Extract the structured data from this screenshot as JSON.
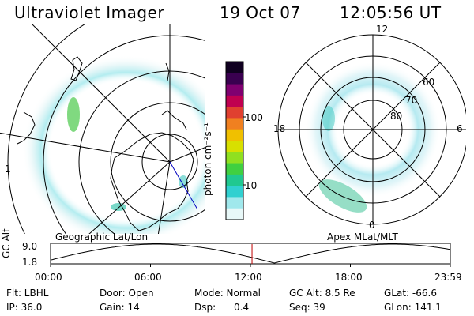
{
  "header": {
    "instrument": "Ultraviolet Imager",
    "date": "19 Oct 07",
    "time": "12:05:56 UT"
  },
  "panels": {
    "geo_label": "Geographic Lat/Lon",
    "apex_label": "Apex MLat/MLT",
    "geo_edge_label": "1"
  },
  "polar": {
    "mlt_top": "12",
    "mlt_left": "18",
    "mlt_right": "6",
    "mlt_bottom": "0",
    "lat_labels": [
      "60",
      "70",
      "80"
    ]
  },
  "colorbar": {
    "unit_label": "photon cm⁻²s⁻¹",
    "ticks": [
      "100",
      "10"
    ],
    "colors": [
      "#100020",
      "#3a0050",
      "#800070",
      "#c00050",
      "#e04030",
      "#f08020",
      "#f0c000",
      "#d8e000",
      "#90e020",
      "#40d040",
      "#20c890",
      "#30d0d0",
      "#a0e8ec",
      "#e8f8f8"
    ]
  },
  "altitude": {
    "axis_label": "GC Alt",
    "ymax": "9.0",
    "ymin": "1.8",
    "xticks": [
      "00:00",
      "06:00",
      "12:00",
      "18:00",
      "23:59"
    ],
    "current_time_fraction": 0.504
  },
  "info": {
    "row1": {
      "filter": "Flt: LBHL",
      "door": "Door: Open",
      "mode": "Mode: Normal",
      "gc_alt": "GC Alt: 8.5 Re",
      "glat": "GLat: -66.6"
    },
    "row2": {
      "ip": "IP: 36.0",
      "gain": "Gain: 14",
      "dsp_label": "Dsp:",
      "dsp_value": "0.4",
      "seq": "Seq: 39",
      "glon": "GLon: 141.1"
    }
  }
}
